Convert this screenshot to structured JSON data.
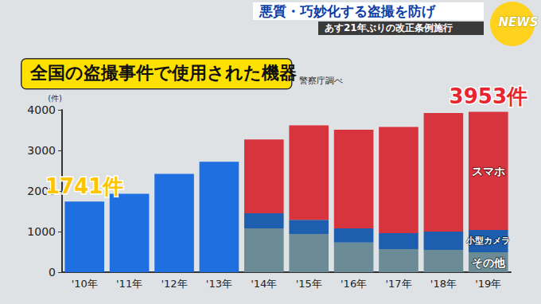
{
  "header": {
    "headline": "悪質・巧妙化する盗撮を防げ",
    "subheadline": "あす21年ぶりの改正条例施行",
    "logo": "NEWS"
  },
  "chart_data": {
    "type": "bar",
    "title": "全国の盗撮事件で使用された機器",
    "subtitle": "警察庁調べ",
    "y_label": "(件)",
    "categories": [
      "'10年",
      "'11年",
      "'12年",
      "'13年",
      "'14年",
      "'15年",
      "'16年",
      "'17年",
      "'18年",
      "'19年"
    ],
    "series": [
      {
        "color": "#1f6fe0",
        "values": [
          1741,
          1930,
          2420,
          2720,
          null,
          null,
          null,
          null,
          null,
          null
        ]
      },
      {
        "name": "その他",
        "color": "#6b8c96",
        "values": [
          null,
          null,
          null,
          null,
          1080,
          940,
          730,
          570,
          550,
          490
        ]
      },
      {
        "name": "小型カメラ",
        "color": "#1d5fae",
        "values": [
          null,
          null,
          null,
          null,
          370,
          350,
          350,
          390,
          450,
          550
        ]
      },
      {
        "name": "スマホ",
        "color": "#d8343e",
        "values": [
          null,
          null,
          null,
          null,
          1820,
          2330,
          2430,
          2620,
          2920,
          2913
        ]
      }
    ],
    "stacked": true,
    "ylim": [
      0,
      4000
    ],
    "yticks": [
      0,
      1000,
      2000,
      3000,
      4000
    ],
    "grid": false,
    "annotations": [
      {
        "text": "1741件",
        "x": "'10年",
        "y": 1741,
        "color": "#ffc400"
      },
      {
        "text": "3953件",
        "x": "'19年",
        "y": 3953,
        "color": "#e8262f"
      }
    ]
  }
}
